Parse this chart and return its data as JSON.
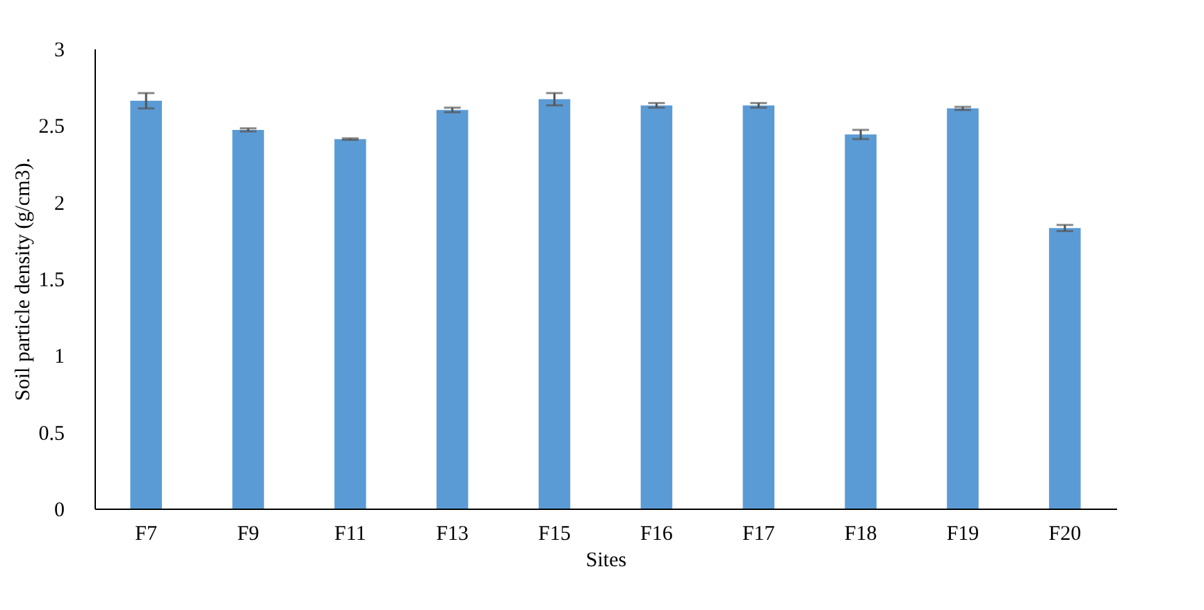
{
  "chart_data": {
    "type": "bar",
    "xlabel": "Sites",
    "ylabel": "Soil particle density (g/cm3).",
    "categories": [
      "F7",
      "F9",
      "F11",
      "F13",
      "F15",
      "F16",
      "F17",
      "F18",
      "F19",
      "F20"
    ],
    "values": [
      2.66,
      2.47,
      2.41,
      2.6,
      2.67,
      2.63,
      2.63,
      2.44,
      2.61,
      1.83
    ],
    "errors": [
      0.05,
      0.01,
      0.005,
      0.015,
      0.04,
      0.015,
      0.015,
      0.03,
      0.01,
      0.02
    ],
    "color": "#5b9bd5",
    "ylim": [
      0,
      3
    ],
    "yticks": [
      0,
      0.5,
      1,
      1.5,
      2,
      2.5,
      3
    ],
    "grid": false
  }
}
